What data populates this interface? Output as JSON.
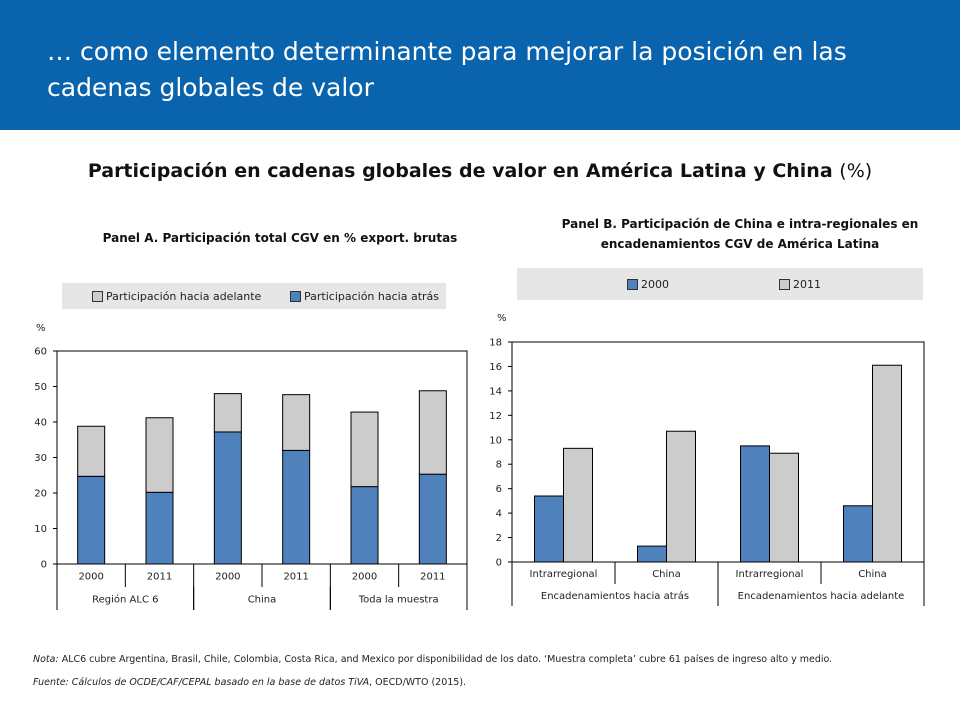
{
  "header": {
    "title": "… como elemento determinante para mejorar la posición en las cadenas globales de valor"
  },
  "main_title": {
    "text": "Participación en cadenas globales de valor en América Latina y China",
    "unit": "(%)"
  },
  "colors": {
    "header_bg": "#0a63ad",
    "blue_series": "#4f81bd",
    "gray_series": "#cccccc",
    "legend_bg": "#e6e6e6"
  },
  "chart_data": [
    {
      "type": "bar",
      "stacked": true,
      "title": "Panel A. Participación total CGV en % export. brutas",
      "ylabel": "%",
      "ylim": [
        0,
        60
      ],
      "yticks": [
        0,
        10,
        20,
        30,
        40,
        50,
        60
      ],
      "categories": [
        "2000",
        "2011",
        "2000",
        "2011",
        "2000",
        "2011"
      ],
      "groups": [
        {
          "label": "Región ALC 6",
          "span": 2
        },
        {
          "label": "China",
          "span": 2
        },
        {
          "label": "Toda la muestra",
          "span": 2
        }
      ],
      "legend_position": "top",
      "series": [
        {
          "name": "Participación hacia atrás",
          "color": "#4f81bd",
          "values": [
            24.7,
            20.2,
            37.2,
            32.0,
            21.8,
            25.3
          ]
        },
        {
          "name": "Participación hacia adelante",
          "color": "#cccccc",
          "values": [
            14.1,
            21.0,
            10.8,
            15.7,
            21.0,
            23.5
          ]
        }
      ],
      "legend": [
        "Participación hacia adelante",
        "Participación hacia atrás"
      ]
    },
    {
      "type": "bar",
      "stacked": false,
      "title": "Panel B. Participación de China e intra-regionales en encadenamientos CGV de América Latina",
      "ylabel": "%",
      "ylim": [
        0,
        18
      ],
      "yticks": [
        0,
        2,
        4,
        6,
        8,
        10,
        12,
        14,
        16,
        18
      ],
      "categories": [
        "Intrarregional",
        "China",
        "Intrarregional",
        "China"
      ],
      "groups": [
        {
          "label": "Encadenamientos hacia atrás",
          "span": 2
        },
        {
          "label": "Encadenamientos hacia adelante",
          "span": 2
        }
      ],
      "legend_position": "top",
      "series": [
        {
          "name": "2000",
          "color": "#4f81bd",
          "values": [
            5.4,
            1.3,
            9.5,
            4.6
          ]
        },
        {
          "name": "2011",
          "color": "#cccccc",
          "values": [
            9.3,
            10.7,
            8.9,
            16.1
          ]
        }
      ]
    }
  ],
  "notes": {
    "nota_label": "Nota:",
    "nota_text": " ALC6 cubre Argentina, Brasil, Chile, Colombia, Costa Rica, and Mexico por  disponibilidad de los dato. ‘Muestra completa’ cubre 61 países de ingreso alto y medio.",
    "fuente_text": "Fuente: Cálculos de OCDE/CAF/CEPAL basado en la base de datos TiVA",
    "fuente_tail": ", OECD/WTO (2015)."
  }
}
